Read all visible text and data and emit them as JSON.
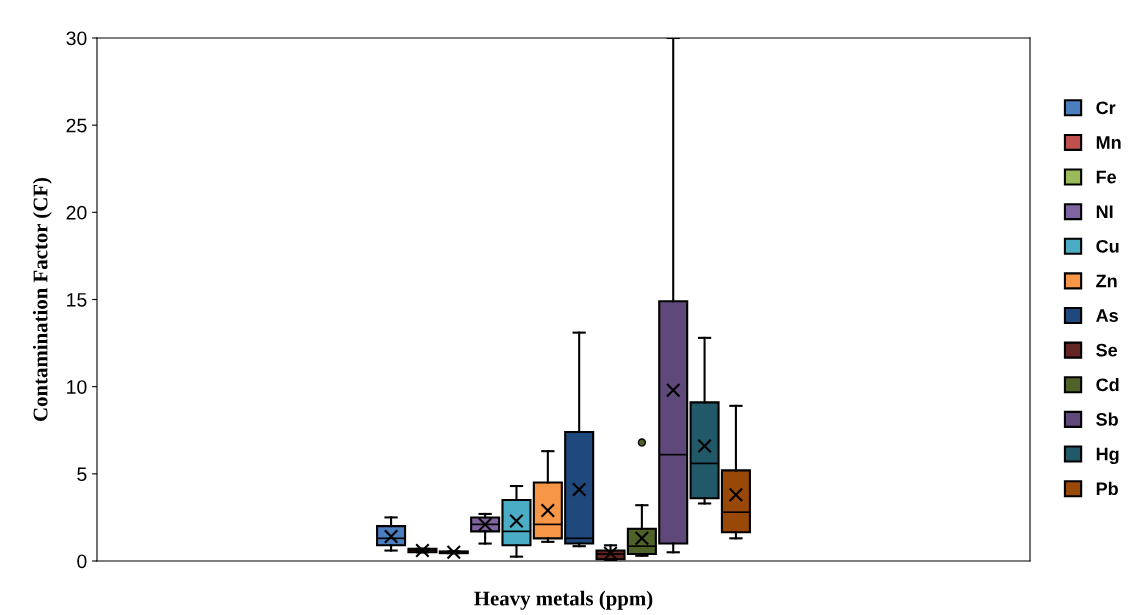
{
  "chart_data": {
    "type": "box",
    "xlabel": "Heavy metals (ppm)",
    "ylabel": "Contamination Factor (CF)",
    "categories": [
      null
    ],
    "ylim": [
      0,
      30
    ],
    "yticks": [
      0,
      5,
      10,
      15,
      20,
      25,
      30
    ],
    "grid": false,
    "legend": "right",
    "marker": "cross",
    "series": [
      {
        "name": "Cr",
        "color": "#4a7ebf",
        "boxes": [
          {
            "low": 0.6,
            "q1": 0.9,
            "median": 1.3,
            "q3": 2.0,
            "high": 2.5,
            "mean": 1.4
          }
        ]
      },
      {
        "name": "Mn",
        "color": "#c0504d",
        "boxes": [
          {
            "low": 0.5,
            "q1": 0.5,
            "median": 0.6,
            "q3": 0.7,
            "high": 0.7,
            "mean": 0.6
          }
        ]
      },
      {
        "name": "Fe",
        "color": "#9bbb59",
        "boxes": [
          {
            "low": 0.45,
            "q1": 0.45,
            "median": 0.5,
            "q3": 0.55,
            "high": 0.55,
            "mean": 0.5
          }
        ]
      },
      {
        "name": "NI",
        "color": "#8064a2",
        "boxes": [
          {
            "low": 1.0,
            "q1": 1.7,
            "median": 2.1,
            "q3": 2.5,
            "high": 2.7,
            "mean": 2.1
          }
        ]
      },
      {
        "name": "Cu",
        "color": "#4bacc6",
        "boxes": [
          {
            "low": 0.25,
            "q1": 0.9,
            "median": 1.7,
            "q3": 3.5,
            "high": 4.3,
            "mean": 2.3
          }
        ]
      },
      {
        "name": "Zn",
        "color": "#f79646",
        "boxes": [
          {
            "low": 1.1,
            "q1": 1.3,
            "median": 2.1,
            "q3": 4.5,
            "high": 6.3,
            "mean": 2.9
          }
        ]
      },
      {
        "name": "As",
        "color": "#1f497d",
        "boxes": [
          {
            "low": 0.85,
            "q1": 1.0,
            "median": 1.3,
            "q3": 7.4,
            "high": 13.1,
            "mean": 4.1
          }
        ]
      },
      {
        "name": "Se",
        "color": "#632523",
        "boxes": [
          {
            "low": 0.05,
            "q1": 0.1,
            "median": 0.4,
            "q3": 0.6,
            "high": 0.9,
            "mean": 0.45
          }
        ]
      },
      {
        "name": "Cd",
        "color": "#4f6228",
        "boxes": [
          {
            "low": 0.3,
            "q1": 0.4,
            "median": 0.85,
            "q3": 1.85,
            "high": 3.2,
            "mean": 1.3,
            "outliers": [
              6.8
            ]
          }
        ]
      },
      {
        "name": "Sb",
        "color": "#5f497a",
        "boxes": [
          {
            "low": 0.5,
            "q1": 1.0,
            "median": 6.1,
            "q3": 14.9,
            "high": 30,
            "mean": 9.8
          }
        ]
      },
      {
        "name": "Hg",
        "color": "#215968",
        "boxes": [
          {
            "low": 3.3,
            "q1": 3.6,
            "median": 5.6,
            "q3": 9.1,
            "high": 12.8,
            "mean": 6.6
          }
        ]
      },
      {
        "name": "Pb",
        "color": "#984807",
        "boxes": [
          {
            "low": 1.3,
            "q1": 1.65,
            "median": 2.8,
            "q3": 5.2,
            "high": 8.9,
            "mean": 3.8
          }
        ]
      }
    ]
  }
}
